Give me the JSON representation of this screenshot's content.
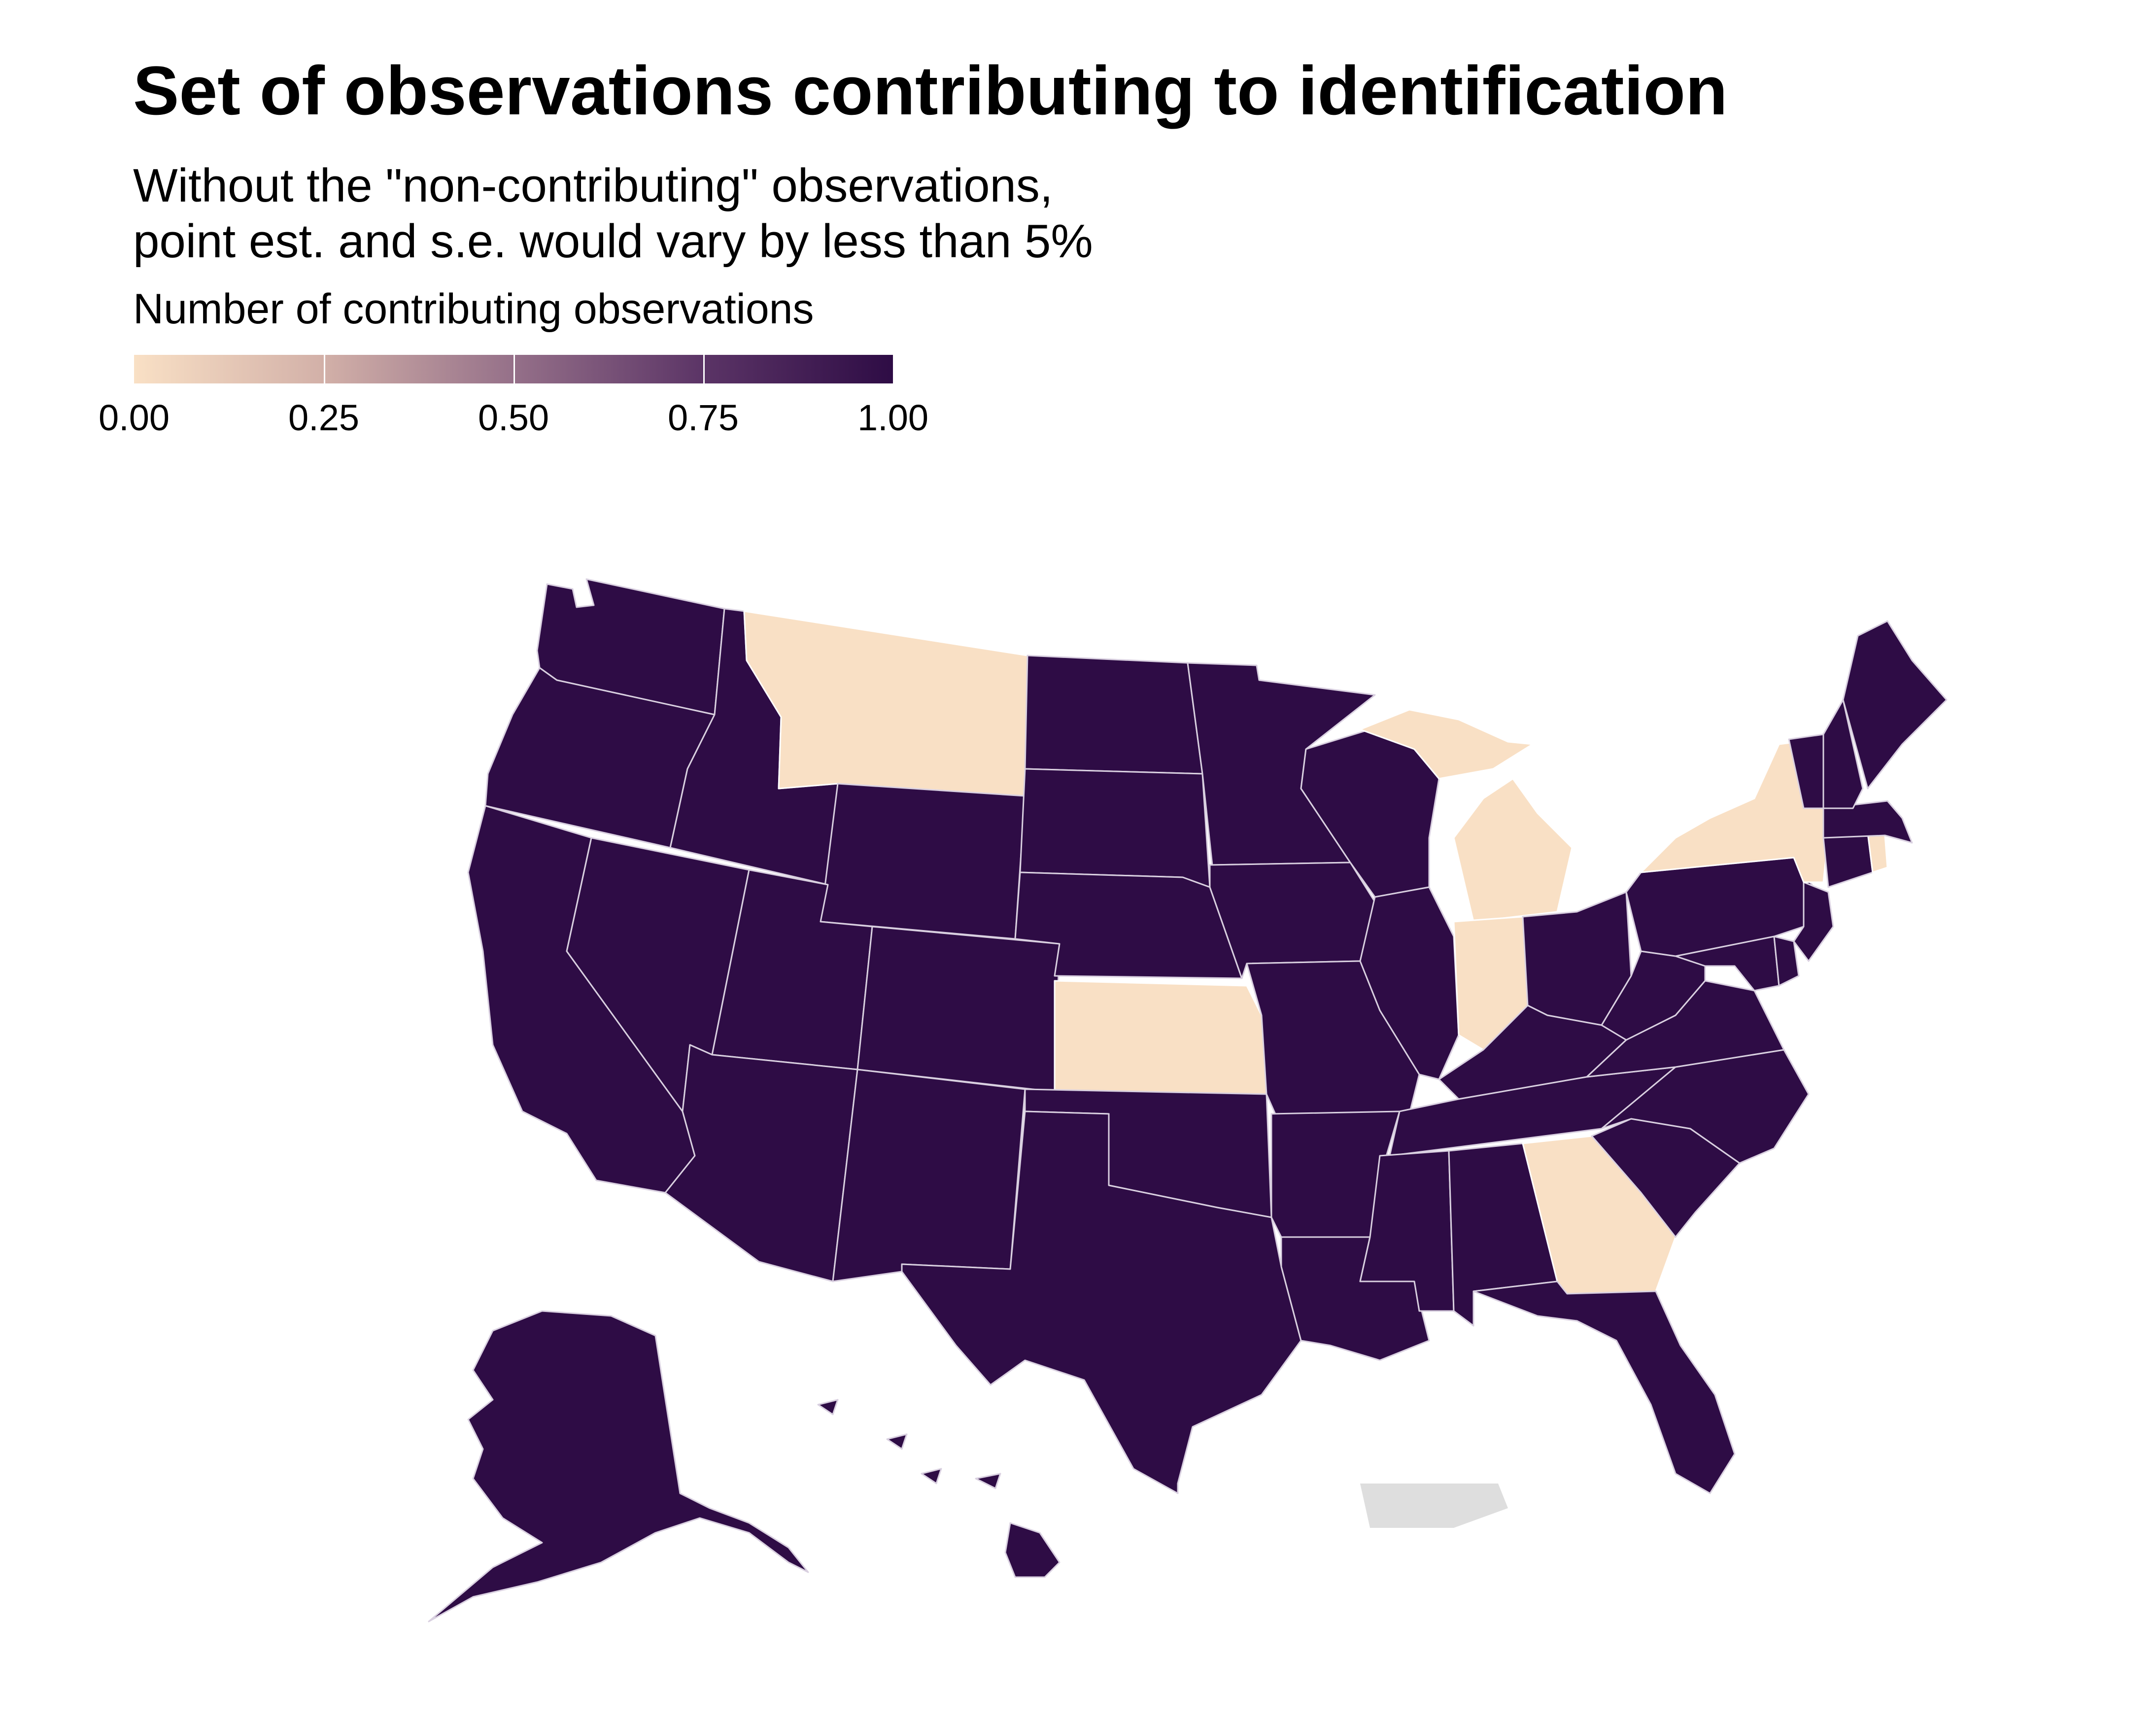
{
  "title": "Set of observations contributing to identification",
  "subtitle": [
    "Without the \"non-contributing\" observations,",
    "point est. and s.e. would vary by less than 5%"
  ],
  "legend": {
    "title": "Number of contributing observations",
    "labels": [
      "0.00",
      "0.25",
      "0.50",
      "0.75",
      "1.00"
    ],
    "low_color": "#f9e0c5",
    "high_color": "#2e0c45",
    "na_color": "#dedede"
  },
  "map": {
    "region": "United States",
    "states": [
      {
        "name": "Washington",
        "value": 1
      },
      {
        "name": "Oregon",
        "value": 1
      },
      {
        "name": "California",
        "value": 1
      },
      {
        "name": "Idaho",
        "value": 1
      },
      {
        "name": "Nevada",
        "value": 1
      },
      {
        "name": "Montana",
        "value": 0
      },
      {
        "name": "Wyoming",
        "value": 1
      },
      {
        "name": "Utah",
        "value": 1
      },
      {
        "name": "Arizona",
        "value": 1
      },
      {
        "name": "Colorado",
        "value": 1
      },
      {
        "name": "New Mexico",
        "value": 1
      },
      {
        "name": "North Dakota",
        "value": 1
      },
      {
        "name": "South Dakota",
        "value": 1
      },
      {
        "name": "Nebraska",
        "value": 1
      },
      {
        "name": "Kansas",
        "value": 0
      },
      {
        "name": "Oklahoma",
        "value": 1
      },
      {
        "name": "Texas",
        "value": 1
      },
      {
        "name": "Minnesota",
        "value": 1
      },
      {
        "name": "Iowa",
        "value": 1
      },
      {
        "name": "Missouri",
        "value": 1
      },
      {
        "name": "Arkansas",
        "value": 1
      },
      {
        "name": "Louisiana",
        "value": 1
      },
      {
        "name": "Wisconsin",
        "value": 1
      },
      {
        "name": "Illinois",
        "value": 1
      },
      {
        "name": "Michigan",
        "value": 0
      },
      {
        "name": "Indiana",
        "value": 0
      },
      {
        "name": "Ohio",
        "value": 1
      },
      {
        "name": "Kentucky",
        "value": 1
      },
      {
        "name": "Tennessee",
        "value": 1
      },
      {
        "name": "Mississippi",
        "value": 1
      },
      {
        "name": "Alabama",
        "value": 1
      },
      {
        "name": "Georgia",
        "value": 0
      },
      {
        "name": "Florida",
        "value": 1
      },
      {
        "name": "South Carolina",
        "value": 1
      },
      {
        "name": "North Carolina",
        "value": 1
      },
      {
        "name": "Virginia",
        "value": 1
      },
      {
        "name": "West Virginia",
        "value": 1
      },
      {
        "name": "Maryland",
        "value": 1
      },
      {
        "name": "Delaware",
        "value": 1
      },
      {
        "name": "Pennsylvania",
        "value": 1
      },
      {
        "name": "New Jersey",
        "value": 1
      },
      {
        "name": "New York",
        "value": 0
      },
      {
        "name": "Connecticut",
        "value": 1
      },
      {
        "name": "Rhode Island",
        "value": 0
      },
      {
        "name": "Massachusetts",
        "value": 1
      },
      {
        "name": "Vermont",
        "value": 1
      },
      {
        "name": "New Hampshire",
        "value": 1
      },
      {
        "name": "Maine",
        "value": 1
      },
      {
        "name": "Alaska",
        "value": 1
      },
      {
        "name": "Hawaii",
        "value": 1
      },
      {
        "name": "Puerto Rico",
        "value": null
      }
    ]
  }
}
